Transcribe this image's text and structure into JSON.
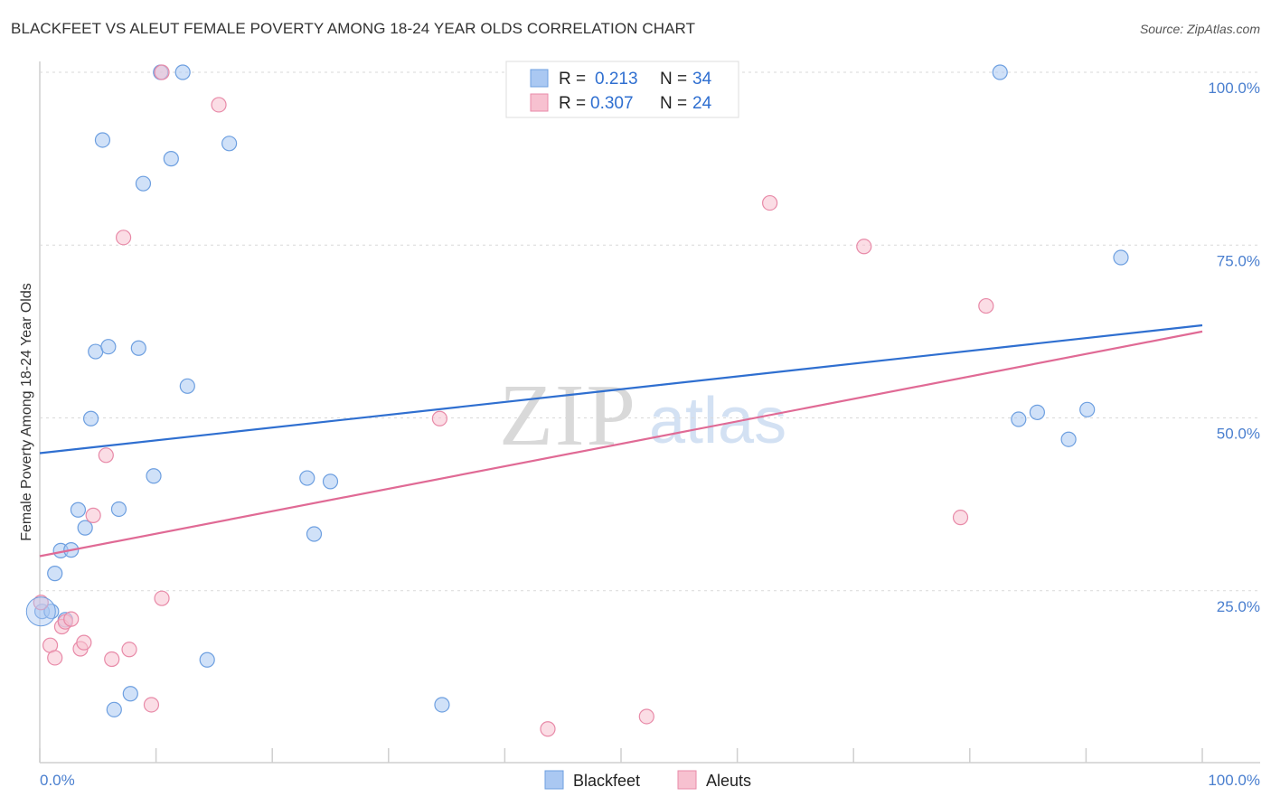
{
  "title": "BLACKFEET VS ALEUT FEMALE POVERTY AMONG 18-24 YEAR OLDS CORRELATION CHART",
  "source": "Source: ZipAtlas.com",
  "watermark": {
    "zip": "ZIP",
    "atlas": "atlas"
  },
  "legend": {
    "r_label": "R =",
    "n_label": "N =",
    "rows": [
      {
        "name": "Blackfeet",
        "r": "0.213",
        "n": "34"
      },
      {
        "name": "Aleuts",
        "r": "0.307",
        "n": "24"
      }
    ]
  },
  "colors": {
    "blackfeet_fill": "#aac8f2",
    "blackfeet_stroke": "#6d9fe0",
    "blackfeet_line": "#2f6fd0",
    "aleuts_fill": "#f7c1d0",
    "aleuts_stroke": "#e88aa8",
    "aleuts_line": "#e06a95"
  },
  "chart_data": {
    "type": "scatter",
    "title": "BLACKFEET VS ALEUT FEMALE POVERTY AMONG 18-24 YEAR OLDS CORRELATION CHART",
    "xlabel": "",
    "ylabel": "Female Poverty Among 18-24 Year Olds",
    "xlim": [
      0,
      100
    ],
    "ylim": [
      0,
      100
    ],
    "x_tick_labels": [
      "0.0%",
      "100.0%"
    ],
    "y_tick_labels": [
      "100.0%",
      "75.0%",
      "50.0%",
      "25.0%"
    ],
    "y_tick_values": [
      100,
      75,
      50,
      25
    ],
    "series": [
      {
        "name": "Blackfeet",
        "points": [
          [
            0.2,
            22.0
          ],
          [
            1.0,
            22.0
          ],
          [
            1.3,
            27.5
          ],
          [
            1.8,
            30.8
          ],
          [
            2.7,
            30.9
          ],
          [
            2.2,
            20.8
          ],
          [
            3.3,
            36.7
          ],
          [
            3.9,
            34.1
          ],
          [
            4.4,
            49.9
          ],
          [
            4.8,
            59.6
          ],
          [
            5.4,
            90.2
          ],
          [
            5.9,
            60.3
          ],
          [
            6.4,
            7.8
          ],
          [
            6.8,
            36.8
          ],
          [
            7.8,
            10.1
          ],
          [
            8.5,
            60.1
          ],
          [
            8.9,
            83.9
          ],
          [
            9.8,
            41.6
          ],
          [
            10.4,
            100.0
          ],
          [
            11.3,
            87.5
          ],
          [
            12.3,
            100.0
          ],
          [
            12.7,
            54.6
          ],
          [
            14.4,
            15.0
          ],
          [
            16.3,
            89.7
          ],
          [
            23.0,
            41.3
          ],
          [
            23.6,
            33.2
          ],
          [
            25.0,
            40.8
          ],
          [
            34.6,
            8.5
          ],
          [
            82.6,
            100.0
          ],
          [
            84.2,
            49.8
          ],
          [
            85.8,
            50.8
          ],
          [
            88.5,
            46.9
          ],
          [
            90.1,
            51.2
          ],
          [
            93.0,
            73.2
          ]
        ],
        "trend": {
          "x": [
            0,
            100
          ],
          "y": [
            44.9,
            63.4
          ]
        }
      },
      {
        "name": "Aleuts",
        "points": [
          [
            0.1,
            23.3
          ],
          [
            0.9,
            17.1
          ],
          [
            1.3,
            15.3
          ],
          [
            1.9,
            19.8
          ],
          [
            2.2,
            20.5
          ],
          [
            2.7,
            20.9
          ],
          [
            3.5,
            16.6
          ],
          [
            3.8,
            17.5
          ],
          [
            4.6,
            35.9
          ],
          [
            5.7,
            44.6
          ],
          [
            6.2,
            15.1
          ],
          [
            7.2,
            76.1
          ],
          [
            7.7,
            16.5
          ],
          [
            9.6,
            8.5
          ],
          [
            10.5,
            100.0
          ],
          [
            10.5,
            23.9
          ],
          [
            15.4,
            95.3
          ],
          [
            34.4,
            49.9
          ],
          [
            43.7,
            5.0
          ],
          [
            52.2,
            6.8
          ],
          [
            62.8,
            81.1
          ],
          [
            70.9,
            74.8
          ],
          [
            79.2,
            35.6
          ],
          [
            81.4,
            66.2
          ]
        ],
        "trend": {
          "x": [
            0,
            100
          ],
          "y": [
            30.0,
            62.5
          ]
        }
      }
    ]
  }
}
